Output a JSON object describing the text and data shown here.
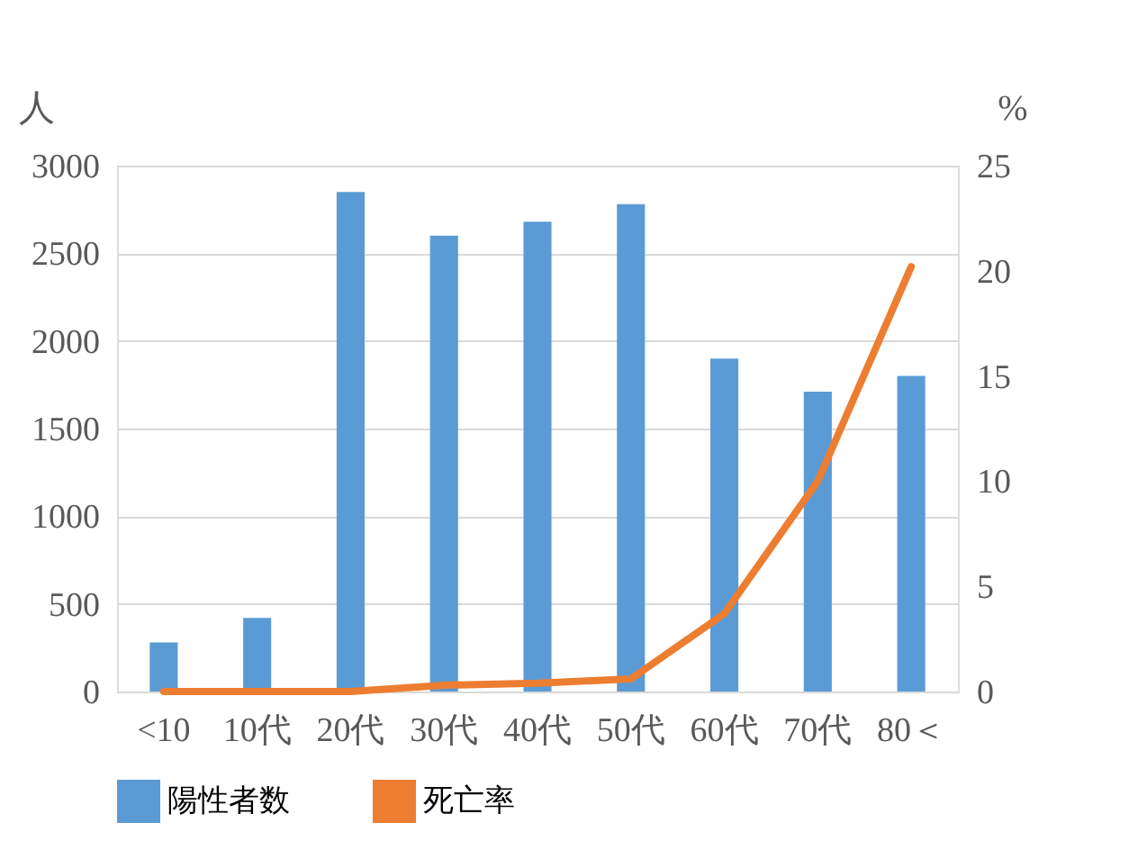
{
  "chart_data": {
    "type": "bar",
    "ylabel": "人",
    "y2label": "%",
    "categories": [
      "<10",
      "10代",
      "20代",
      "30代",
      "40代",
      "50代",
      "60代",
      "70代",
      "80＜"
    ],
    "series": [
      {
        "name": "陽性者数",
        "color": "#5b9bd5",
        "values": [
          280,
          420,
          2850,
          2600,
          2680,
          2780,
          1900,
          1710,
          1800
        ]
      },
      {
        "name": "死亡率",
        "type": "line",
        "axis": "y2",
        "color": "#ed7d31",
        "values": [
          0,
          0,
          0,
          0.3,
          0.4,
          0.6,
          3.7,
          10,
          20.2
        ]
      }
    ],
    "ylim": [
      0,
      3000
    ],
    "yticks": [
      0,
      500,
      1000,
      1500,
      2000,
      2500,
      3000
    ],
    "y2lim": [
      0,
      25
    ],
    "y2ticks": [
      0,
      5,
      10,
      15,
      20,
      25
    ],
    "grid": "y",
    "legend": "bottom",
    "marker": "none",
    "line_style": "solid"
  }
}
